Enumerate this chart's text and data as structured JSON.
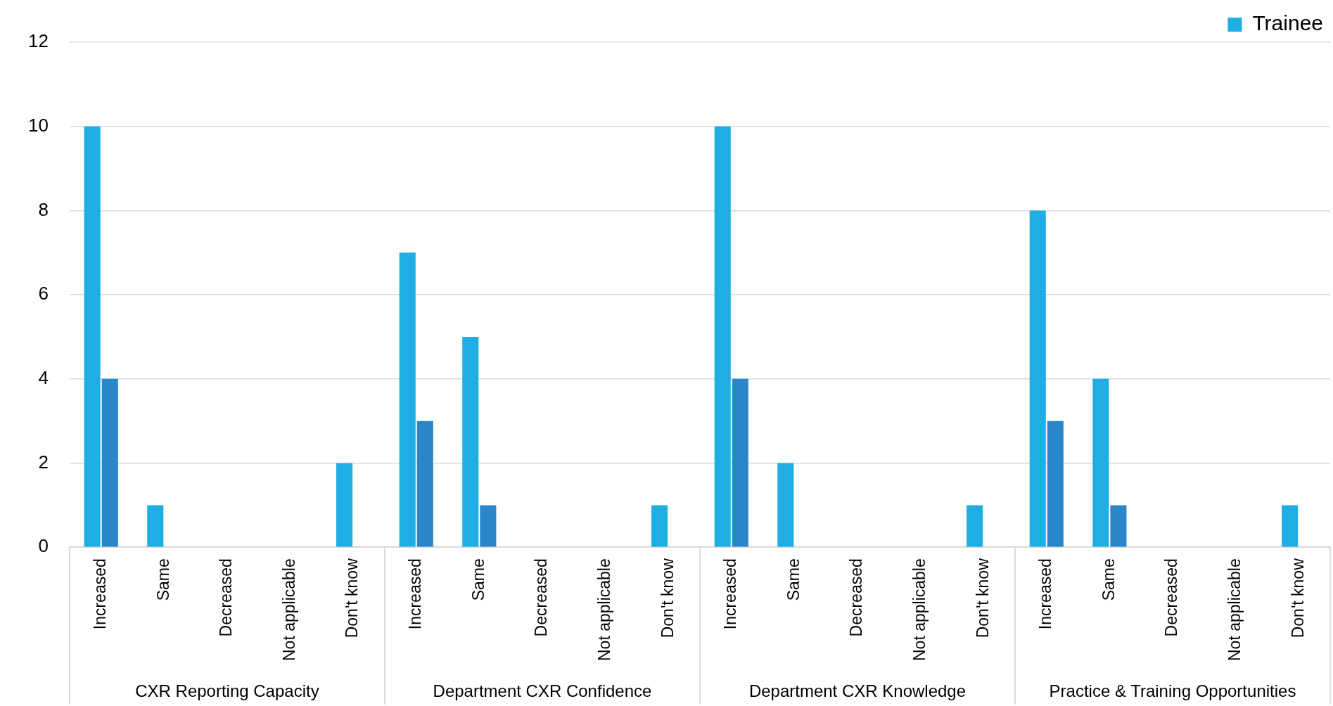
{
  "chart_data": {
    "type": "bar",
    "categories": [
      "Increased",
      "Same",
      "Decreased",
      "Not applicable",
      "Don't know",
      "Increased",
      "Same",
      "Decreased",
      "Not applicable",
      "Don't know",
      "Increased",
      "Same",
      "Decreased",
      "Not applicable",
      "Don't know",
      "Increased",
      "Same",
      "Decreased",
      "Not applicable",
      "Don't know"
    ],
    "series": [
      {
        "name": "Trainee",
        "color": "#1eaee3",
        "values": [
          10,
          1,
          0,
          0,
          2,
          7,
          5,
          0,
          0,
          1,
          10,
          2,
          0,
          0,
          1,
          8,
          4,
          0,
          0,
          1
        ]
      },
      {
        "color": "#2a86c9",
        "values": [
          4,
          0,
          0,
          0,
          0,
          3,
          1,
          0,
          0,
          0,
          4,
          0,
          0,
          0,
          0,
          3,
          1,
          0,
          0,
          0
        ]
      }
    ],
    "annotations": [
      "CXR Reporting Capacity",
      "Department CXR Confidence",
      "Department CXR Knowledge",
      "Practice & Training Opportunities"
    ],
    "ylim": [
      0,
      12
    ],
    "yticks": [
      0,
      2,
      4,
      6,
      8,
      10,
      12
    ],
    "grid": "y",
    "legend": "top right"
  }
}
